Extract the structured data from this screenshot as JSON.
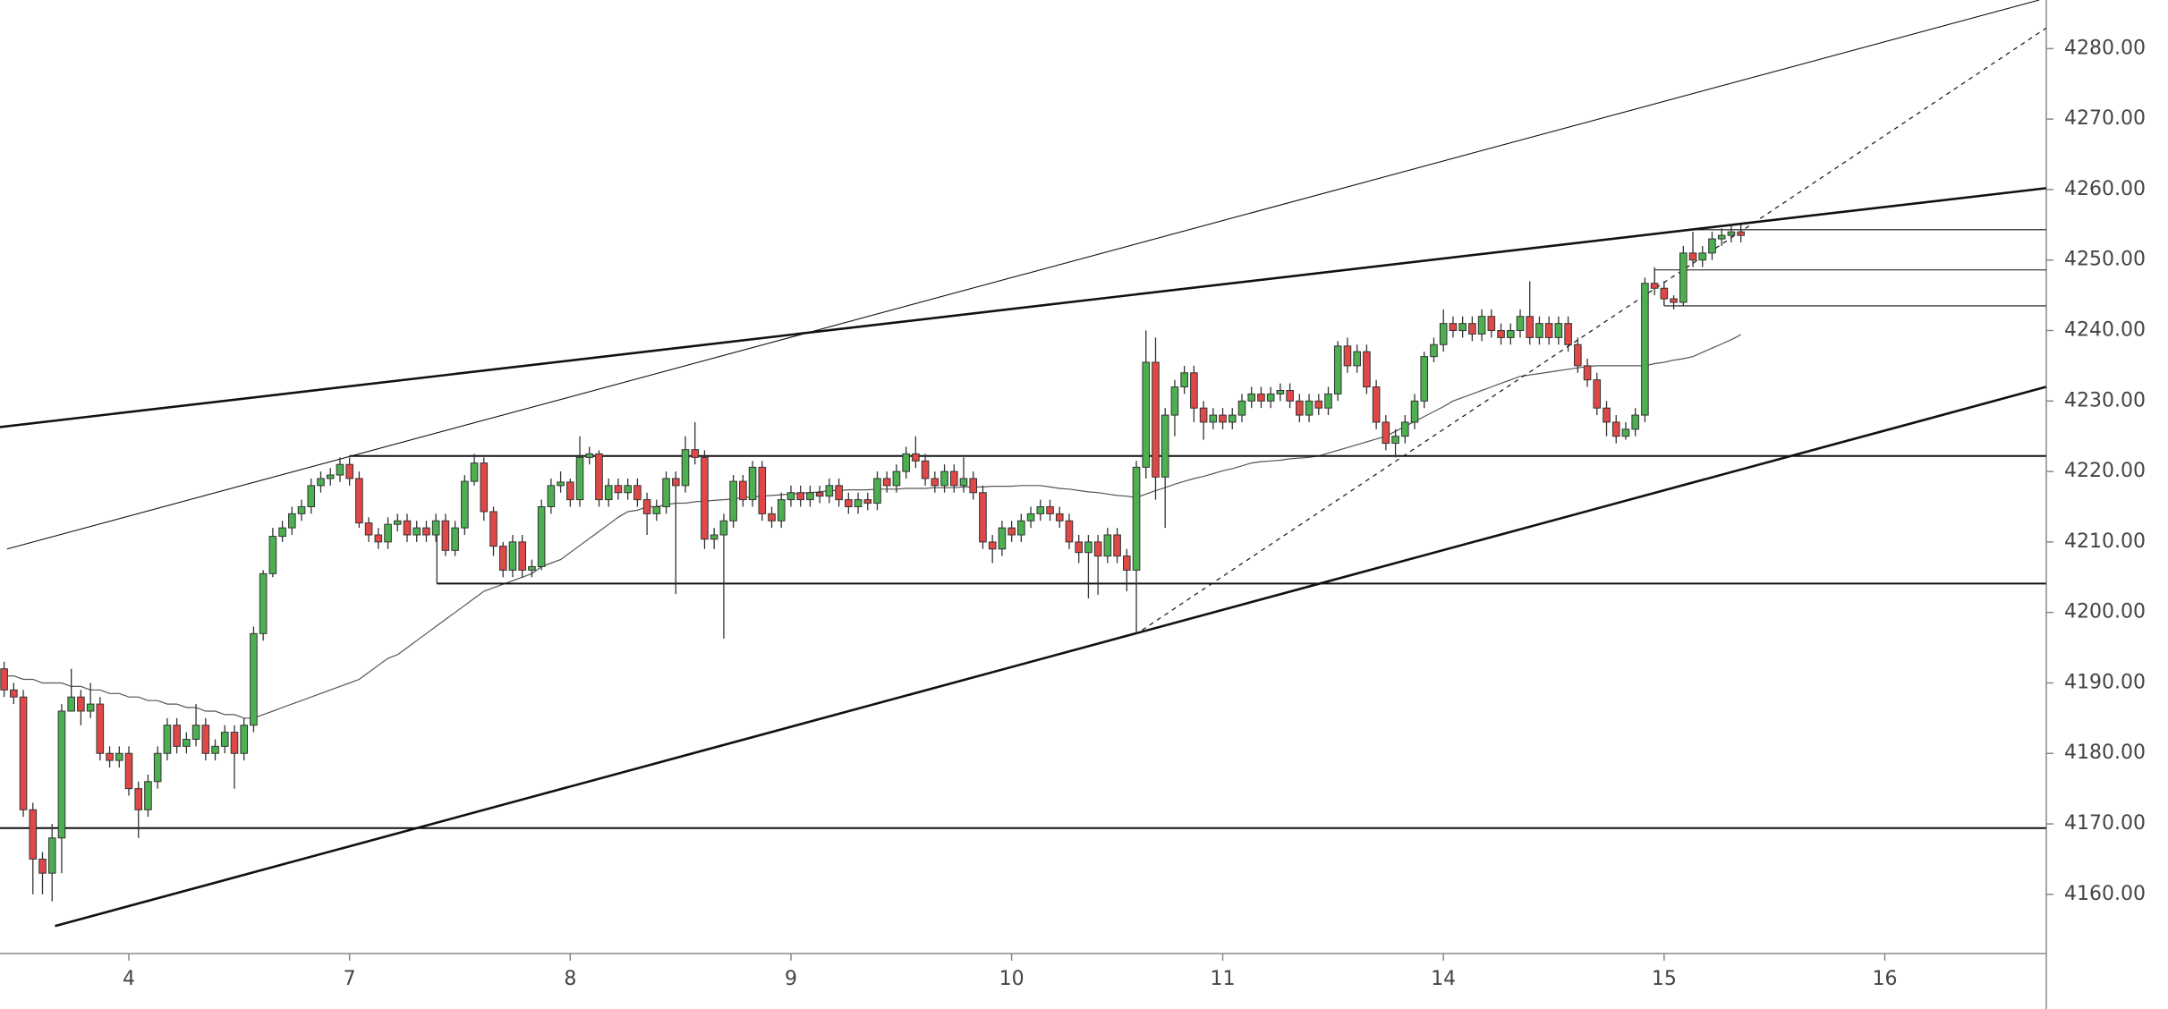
{
  "chart_data": {
    "type": "candlestick",
    "ylim": [
      4151.6,
      4286.9
    ],
    "yticks": [
      {
        "value": 4160,
        "label": "4160.00"
      },
      {
        "value": 4170,
        "label": "4170.00"
      },
      {
        "value": 4180,
        "label": "4180.00"
      },
      {
        "value": 4190,
        "label": "4190.00"
      },
      {
        "value": 4200,
        "label": "4200.00"
      },
      {
        "value": 4210,
        "label": "4210.00"
      },
      {
        "value": 4220,
        "label": "4220.00"
      },
      {
        "value": 4230,
        "label": "4230.00"
      },
      {
        "value": 4240,
        "label": "4240.00"
      },
      {
        "value": 4250,
        "label": "4250.00"
      },
      {
        "value": 4260,
        "label": "4260.00"
      },
      {
        "value": 4270,
        "label": "4270.00"
      },
      {
        "value": 4280,
        "label": "4280.00"
      }
    ],
    "categories": [
      null,
      null,
      null,
      null,
      null,
      null,
      null,
      null,
      null,
      null,
      null,
      null,
      null,
      "4",
      null,
      null,
      null,
      null,
      null,
      null,
      null,
      null,
      null,
      null,
      null,
      null,
      null,
      null,
      null,
      null,
      null,
      null,
      null,
      null,
      null,
      null,
      "7",
      null,
      null,
      null,
      null,
      null,
      null,
      null,
      null,
      null,
      null,
      null,
      null,
      null,
      null,
      null,
      null,
      null,
      null,
      null,
      null,
      null,
      null,
      "8",
      null,
      null,
      null,
      null,
      null,
      null,
      null,
      null,
      null,
      null,
      null,
      null,
      null,
      null,
      null,
      null,
      null,
      null,
      null,
      null,
      null,
      null,
      "9",
      null,
      null,
      null,
      null,
      null,
      null,
      null,
      null,
      null,
      null,
      null,
      null,
      null,
      null,
      null,
      null,
      null,
      null,
      null,
      null,
      null,
      null,
      "10",
      null,
      null,
      null,
      null,
      null,
      null,
      null,
      null,
      null,
      null,
      null,
      null,
      null,
      null,
      null,
      null,
      null,
      null,
      null,
      null,
      null,
      "11",
      null,
      null,
      null,
      null,
      null,
      null,
      null,
      null,
      null,
      null,
      null,
      null,
      null,
      null,
      null,
      null,
      null,
      null,
      null,
      null,
      null,
      null,
      "14",
      null,
      null,
      null,
      null,
      null,
      null,
      null,
      null,
      null,
      null,
      null,
      null,
      null,
      null,
      null,
      null,
      null,
      null,
      null,
      null,
      null,
      null,
      "15",
      null,
      null,
      null,
      null,
      null,
      null,
      null,
      null,
      null,
      null,
      null,
      null,
      null,
      null,
      null,
      null,
      null,
      null,
      null,
      null,
      null,
      null,
      "16"
    ],
    "up_color": "#4caf50",
    "down_color": "#e04848",
    "border_color": "#333333",
    "open": [
      4192,
      4189,
      4188,
      4172,
      4165,
      4163,
      4168,
      4186,
      4188,
      4186,
      4187,
      4180,
      4179,
      4180,
      4175,
      4172,
      4176,
      4180,
      4184,
      4181,
      4182,
      4184,
      4180,
      4181,
      4183,
      4180,
      4184,
      4197,
      4205.5,
      4210.8,
      4212,
      4214,
      4215,
      4218,
      4219,
      4219.5,
      4221,
      4219,
      4212.7,
      4211,
      4210,
      4212.5,
      4213,
      4211,
      4212,
      4211,
      4213,
      4208.8,
      4212,
      4218.6,
      4221.2,
      4214.3,
      4209.4,
      4206,
      4210,
      4206,
      4206.5,
      4215,
      4218,
      4218.5,
      4216,
      4222,
      4222.5,
      4216,
      4218,
      4217,
      4218,
      4216,
      4214,
      4215,
      4219,
      4218,
      4223.1,
      4222,
      4210.4,
      4211,
      4213,
      4218.6,
      4216,
      4220.6,
      4214,
      4213,
      4216,
      4217,
      4216,
      4217,
      4216.5,
      4218,
      4216,
      4215,
      4216,
      4215.5,
      4219,
      4218,
      4220,
      4222.5,
      4221.5,
      4219,
      4218,
      4220,
      4218,
      4219,
      4217,
      4210,
      4209,
      4212,
      4211,
      4213,
      4214,
      4215,
      4214,
      4213,
      4210,
      4208.5,
      4210,
      4208,
      4211,
      4208,
      4206,
      4220.6,
      4235.5,
      4219.2,
      4228,
      4232,
      4234,
      4229,
      4227,
      4228,
      4227,
      4228,
      4230,
      4231,
      4230,
      4231,
      4231.5,
      4230,
      4228,
      4230,
      4229,
      4231,
      4237.8,
      4235,
      4237,
      4232,
      4227,
      4224,
      4225,
      4227,
      4230,
      4236.3,
      4238,
      4241,
      4240,
      4241,
      4239.5,
      4242,
      4240,
      4239,
      4240,
      4242,
      4239,
      4241,
      4239,
      4241,
      4238,
      4235,
      4233,
      4229,
      4227,
      4225,
      4226,
      4228,
      4246.7,
      4246,
      4244.5,
      4244,
      4251,
      4250,
      4251,
      4253,
      4253.5,
      4254,
      null,
      null,
      null,
      null,
      null,
      null,
      null,
      null,
      null,
      null,
      null,
      null,
      null,
      null,
      null
    ],
    "high": [
      4193,
      4190,
      4189,
      4173,
      4166,
      4170,
      4187,
      4192,
      4189,
      4190,
      4188,
      4181,
      4181,
      4181,
      4176,
      4177,
      4181,
      4185,
      4185,
      4183,
      4187,
      4185,
      4182,
      4184,
      4184,
      4185,
      4198,
      4206,
      4212,
      4213,
      4215,
      4216,
      4219,
      4220,
      4220.5,
      4222,
      4222,
      4220,
      4213.5,
      4212,
      4213.5,
      4214,
      4214,
      4213,
      4213,
      4214,
      4214,
      4213,
      4219.5,
      4222.5,
      4222,
      4215,
      4210,
      4211,
      4211,
      4207.5,
      4216,
      4219,
      4220,
      4219,
      4225,
      4223.5,
      4223,
      4219,
      4219,
      4219,
      4219,
      4217,
      4216,
      4220,
      4220,
      4225,
      4227,
      4223,
      4212,
      4214,
      4219.5,
      4219.5,
      4221.5,
      4221.5,
      4215,
      4217,
      4218,
      4218,
      4218,
      4218,
      4219,
      4219,
      4217,
      4217,
      4217,
      4220,
      4220,
      4221,
      4223.5,
      4225,
      4222.5,
      4220,
      4221,
      4221,
      4222,
      4220,
      4218,
      4211,
      4213,
      4213,
      4214,
      4215,
      4216,
      4216,
      4215,
      4214,
      4211,
      4211,
      4211,
      4212,
      4212,
      4209,
      4221.5,
      4240,
      4239,
      4229,
      4233,
      4235,
      4235,
      4230,
      4229,
      4229,
      4229,
      4231,
      4232,
      4232,
      4232,
      4232.5,
      4232.5,
      4231,
      4231,
      4231,
      4232,
      4238.5,
      4239,
      4238,
      4238,
      4233,
      4228,
      4226,
      4228,
      4231,
      4237,
      4239,
      4243,
      4242,
      4242,
      4242,
      4243,
      4243,
      4241,
      4241,
      4243,
      4247,
      4242,
      4242,
      4242,
      4242,
      4239,
      4236,
      4234,
      4230,
      4228,
      4227,
      4229,
      4247.5,
      4249,
      4247,
      4245,
      4252,
      4254,
      4252,
      4254,
      4254.5,
      4255,
      4255,
      null,
      null,
      null,
      null,
      null,
      null,
      null,
      null,
      null,
      null,
      null,
      null,
      null,
      null,
      null
    ],
    "low": [
      4188,
      4187,
      4171,
      4160,
      4160,
      4159,
      4163,
      4186,
      4184,
      4185,
      4179,
      4178,
      4178,
      4174,
      4168,
      4171,
      4175,
      4179,
      4180,
      4180,
      4181,
      4179,
      4179,
      4180,
      4175,
      4179,
      4183,
      4196,
      4205,
      4210,
      4211,
      4213,
      4214,
      4217,
      4218,
      4218.5,
      4218,
      4212,
      4210,
      4209,
      4209,
      4211.5,
      4210,
      4210,
      4210,
      4210,
      4208,
      4208,
      4211,
      4218,
      4213,
      4208,
      4205,
      4205,
      4205,
      4205,
      4206,
      4214,
      4217,
      4215,
      4215,
      4221,
      4215,
      4215,
      4216,
      4216,
      4215,
      4211,
      4213,
      4214,
      4202.6,
      4217,
      4221,
      4209,
      4209,
      4196.3,
      4212,
      4215,
      4215,
      4213,
      4212,
      4212,
      4215,
      4215,
      4215,
      4215.5,
      4215.5,
      4215,
      4214,
      4214,
      4214.5,
      4214.5,
      4217,
      4217,
      4219,
      4220.5,
      4218,
      4217,
      4217,
      4217,
      4217,
      4216,
      4209,
      4207,
      4208,
      4210,
      4210,
      4212,
      4213,
      4213,
      4212,
      4209,
      4207,
      4202,
      4202.5,
      4207,
      4207,
      4203,
      4197,
      4219,
      4216,
      4212,
      4225,
      4231,
      4227,
      4224.5,
      4226,
      4226,
      4226,
      4227,
      4229,
      4229,
      4229,
      4230,
      4229,
      4227,
      4227,
      4228,
      4228,
      4230,
      4234,
      4234,
      4231,
      4226,
      4223,
      4222,
      4224,
      4226,
      4229,
      4235.5,
      4237,
      4239,
      4239,
      4238.5,
      4238.5,
      4239,
      4238,
      4238,
      4239,
      4238,
      4238,
      4238,
      4238,
      4237,
      4234,
      4232,
      4228,
      4225,
      4224,
      4224.5,
      4225,
      4227,
      4245,
      4243.5,
      4243,
      4243.5,
      4249,
      4249,
      4250,
      4252,
      4252.5,
      4252.5,
      null,
      null,
      null,
      null,
      null,
      null,
      null,
      null,
      null,
      null,
      null,
      null,
      null,
      null,
      null
    ],
    "close": [
      4189,
      4188,
      4172,
      4165,
      4163,
      4168,
      4186,
      4188,
      4186,
      4187,
      4180,
      4179,
      4180,
      4175,
      4172,
      4176,
      4180,
      4184,
      4181,
      4182,
      4184,
      4180,
      4181,
      4183,
      4180,
      4184,
      4197,
      4205.5,
      4210.8,
      4212,
      4214,
      4215,
      4218,
      4219,
      4219.5,
      4221,
      4219,
      4212.7,
      4211,
      4210,
      4212.5,
      4213,
      4211,
      4212,
      4211,
      4213,
      4208.8,
      4212,
      4218.6,
      4221.2,
      4214.3,
      4209.4,
      4206,
      4210,
      4206,
      4206.5,
      4215,
      4218,
      4218.5,
      4216,
      4222,
      4222.5,
      4216,
      4218,
      4217,
      4218,
      4216,
      4214,
      4215,
      4219,
      4218,
      4223.1,
      4222,
      4210.4,
      4211,
      4213,
      4218.6,
      4216,
      4220.6,
      4214,
      4213,
      4216,
      4217,
      4216,
      4217,
      4216.5,
      4218,
      4216,
      4215,
      4216,
      4215.5,
      4219,
      4218,
      4220,
      4222.5,
      4221.5,
      4219,
      4218,
      4220,
      4218,
      4219,
      4217,
      4210,
      4209,
      4212,
      4211,
      4213,
      4214,
      4215,
      4214,
      4213,
      4210,
      4208.5,
      4210,
      4208,
      4211,
      4208,
      4206,
      4220.6,
      4235.5,
      4219.2,
      4228,
      4232,
      4234,
      4229,
      4227,
      4228,
      4227,
      4228,
      4230,
      4231,
      4230,
      4231,
      4231.5,
      4230,
      4228,
      4230,
      4229,
      4231,
      4237.8,
      4235,
      4237,
      4232,
      4227,
      4224,
      4225,
      4227,
      4230,
      4236.3,
      4238,
      4241,
      4240,
      4241,
      4239.5,
      4242,
      4240,
      4239,
      4240,
      4242,
      4239,
      4241,
      4239,
      4241,
      4238,
      4235,
      4233,
      4229,
      4227,
      4225,
      4226,
      4228,
      4246.7,
      4246,
      4244.5,
      4244,
      4251,
      4250,
      4251,
      4253,
      4253.5,
      4254,
      4253.5,
      null,
      null,
      null,
      null,
      null,
      null,
      null,
      null,
      null,
      null,
      null,
      null,
      null,
      null,
      null
    ],
    "moving_average": {
      "color": "#555555",
      "values": [
        4191,
        4191,
        4190.5,
        4190.5,
        4190,
        4190,
        4190,
        4189.5,
        4189.5,
        4189,
        4189,
        4188.5,
        4188.5,
        4188,
        4188,
        4187.5,
        4187.5,
        4187,
        4187,
        4186.5,
        4186.5,
        4186,
        4186,
        4185.5,
        4185.5,
        4185,
        4185,
        4185.5,
        4186,
        4186.5,
        4187,
        4187.5,
        4188,
        4188.5,
        4189,
        4189.5,
        4190,
        4190.5,
        4191.5,
        4192.5,
        4193.5,
        4194,
        4195,
        4196,
        4197,
        4198,
        4199,
        4200,
        4201,
        4202,
        4203,
        4203.5,
        4204,
        4204.5,
        4205,
        4205.5,
        4206.5,
        4207,
        4207.5,
        4208.5,
        4209.5,
        4210.5,
        4211.5,
        4212.5,
        4213.5,
        4214.3,
        4214.5,
        4215,
        4215,
        4215.3,
        4215.5,
        4215.5,
        4215.7,
        4215.8,
        4215.9,
        4216,
        4216.1,
        4216.3,
        4216.4,
        4216.5,
        4216.6,
        4216.7,
        4216.8,
        4216.9,
        4217,
        4217.1,
        4217.3,
        4217.3,
        4217.4,
        4217.4,
        4217.4,
        4217.5,
        4217.5,
        4217.5,
        4217.6,
        4217.6,
        4217.6,
        4217.7,
        4217.7,
        4217.7,
        4217.8,
        4217.8,
        4217.8,
        4217.9,
        4217.9,
        4217.9,
        4218,
        4218,
        4218,
        4217.8,
        4217.6,
        4217.5,
        4217.3,
        4217.1,
        4217,
        4216.8,
        4216.6,
        4216.5,
        4216.3,
        4216.8,
        4217.3,
        4217.7,
        4218.2,
        4218.6,
        4219,
        4219.3,
        4219.7,
        4220.1,
        4220.4,
        4220.8,
        4221.2,
        4221.4,
        4221.5,
        4221.6,
        4221.8,
        4221.9,
        4222,
        4222.2,
        4222.6,
        4223,
        4223.4,
        4223.8,
        4224.2,
        4224.6,
        4225,
        4225.7,
        4226.4,
        4227.1,
        4227.8,
        4228.5,
        4229.2,
        4230,
        4230.5,
        4231,
        4231.5,
        4232,
        4232.5,
        4233,
        4233.5,
        4233.7,
        4233.9,
        4234.1,
        4234.3,
        4234.5,
        4234.7,
        4234.9,
        4235,
        4235,
        4235,
        4235,
        4235,
        4235,
        4235.3,
        4235.5,
        4235.8,
        4236,
        4236.3,
        4236.9,
        4237.5,
        4238.1,
        4238.7,
        4239.4,
        null,
        null,
        null,
        null,
        null,
        null,
        null,
        null,
        null,
        null,
        null,
        null,
        null,
        null,
        null
      ]
    },
    "drawings": [
      {
        "style": "thin",
        "points": [
          0.3,
          4209,
          212.1,
          4286.9
        ]
      },
      {
        "style": "thick",
        "points": [
          -0.43,
          4226.3,
          212.8,
          4260.2
        ]
      },
      {
        "style": "thick",
        "points": [
          5.3,
          4155.5,
          212.8,
          4232
        ]
      },
      {
        "style": "dashed",
        "points": [
          118.6,
          4197.5,
          212.8,
          4282.9
        ]
      },
      {
        "style": "medium",
        "points": [
          36,
          4222.2,
          212.8,
          4222.2
        ]
      },
      {
        "style": "medium",
        "points": [
          45.1,
          4204.1,
          212.8,
          4204.1
        ]
      },
      {
        "style": "thin",
        "points": [
          45.1,
          4213,
          45.1,
          4204.1
        ]
      },
      {
        "style": "medium",
        "points": [
          -0.43,
          4169.4,
          212.8,
          4169.4
        ]
      },
      {
        "style": "thin",
        "points": [
          176.1,
          4254.3,
          212.8,
          4254.3
        ]
      },
      {
        "style": "thin",
        "points": [
          172,
          4248.6,
          212.8,
          4248.6
        ]
      },
      {
        "style": "thin",
        "points": [
          172,
          4248.6,
          172,
          4246.7
        ]
      },
      {
        "style": "thin",
        "points": [
          173,
          4243.5,
          212.8,
          4243.5
        ]
      },
      {
        "style": "thin",
        "points": [
          173,
          4246.5,
          173,
          4243.5
        ]
      }
    ]
  }
}
